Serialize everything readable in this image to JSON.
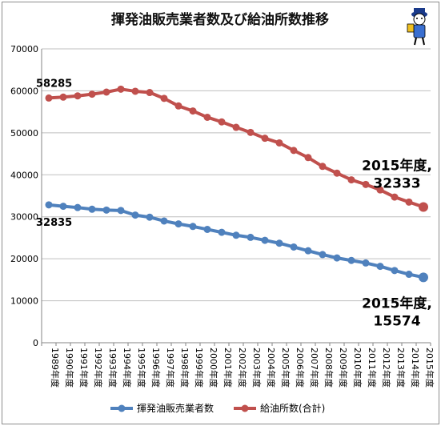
{
  "chart_data": {
    "type": "line",
    "title": "揮発油販売業者数及び給油所数推移",
    "x": [
      "1989年度",
      "1990年度",
      "1991年度",
      "1992年度",
      "1993年度",
      "1994年度",
      "1995年度",
      "1996年度",
      "1997年度",
      "1998年度",
      "1999年度",
      "2000年度",
      "2001年度",
      "2002年度",
      "2003年度",
      "2004年度",
      "2005年度",
      "2006年度",
      "2007年度",
      "2008年度",
      "2009年度",
      "2010年度",
      "2011年度",
      "2012年度",
      "2013年度",
      "2014年度",
      "2015年度"
    ],
    "ylim": [
      0,
      70000
    ],
    "yticks": [
      0,
      10000,
      20000,
      30000,
      40000,
      50000,
      60000,
      70000
    ],
    "grid": true,
    "legend": "bottom",
    "series": [
      {
        "name": "揮発油販売業者数",
        "color": "#4f81bd",
        "values": [
          32835,
          32500,
          32200,
          31800,
          31600,
          31500,
          30400,
          29900,
          29000,
          28300,
          27700,
          27000,
          26300,
          25600,
          25100,
          24400,
          23700,
          22800,
          21900,
          21000,
          20200,
          19600,
          19000,
          18200,
          17200,
          16300,
          15574
        ]
      },
      {
        "name": "給油所数(合計)",
        "color": "#c0504d",
        "values": [
          58285,
          58500,
          58800,
          59200,
          59700,
          60400,
          59900,
          59600,
          58200,
          56400,
          55200,
          53700,
          52600,
          51300,
          50100,
          48700,
          47600,
          45800,
          44100,
          42000,
          40400,
          38800,
          37700,
          36400,
          34700,
          33500,
          32333
        ]
      }
    ],
    "annotations": [
      {
        "text": "58285",
        "series": 1,
        "index": 0
      },
      {
        "text": "32835",
        "series": 0,
        "index": 0
      },
      {
        "line1": "2015年度,",
        "line2": "32333",
        "series": 1,
        "index": 26
      },
      {
        "line1": "2015年度,",
        "line2": "15574",
        "series": 0,
        "index": 26
      }
    ]
  },
  "mascot": {
    "icon": "mascot-icon"
  }
}
